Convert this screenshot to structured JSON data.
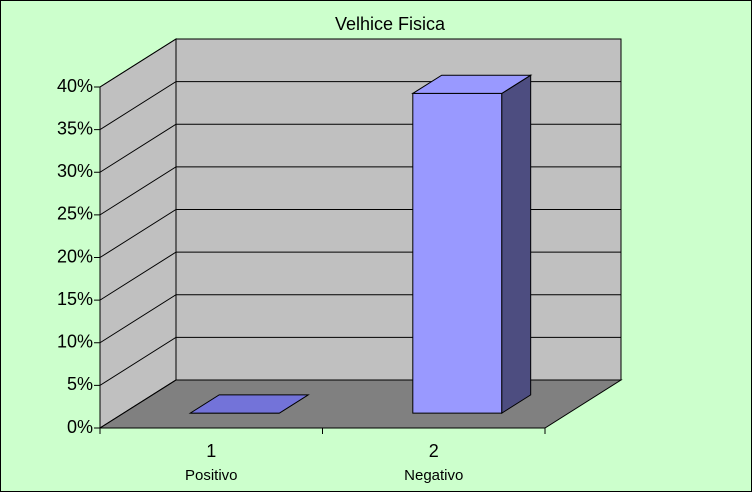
{
  "chart_data": {
    "type": "bar3d",
    "title": "Velhice Fisica",
    "categories": [
      "1",
      "2"
    ],
    "category_names": [
      "Positivo",
      "Negativo"
    ],
    "values": [
      0,
      37.5
    ],
    "colors": {
      "front": "#9999ff",
      "top": "#7373d9",
      "side": "#4d4d80",
      "wall": "#c0c0c0",
      "floor": "#808080",
      "background": "#ccffcc"
    },
    "ylim": [
      0,
      40
    ],
    "yticks": [
      {
        "value": 0,
        "label": "0%"
      },
      {
        "value": 5,
        "label": "5%"
      },
      {
        "value": 10,
        "label": "10%"
      },
      {
        "value": 15,
        "label": "15%"
      },
      {
        "value": 20,
        "label": "20%"
      },
      {
        "value": 25,
        "label": "25%"
      },
      {
        "value": 30,
        "label": "30%"
      },
      {
        "value": 35,
        "label": "35%"
      },
      {
        "value": 40,
        "label": "40%"
      }
    ],
    "grid": true
  }
}
